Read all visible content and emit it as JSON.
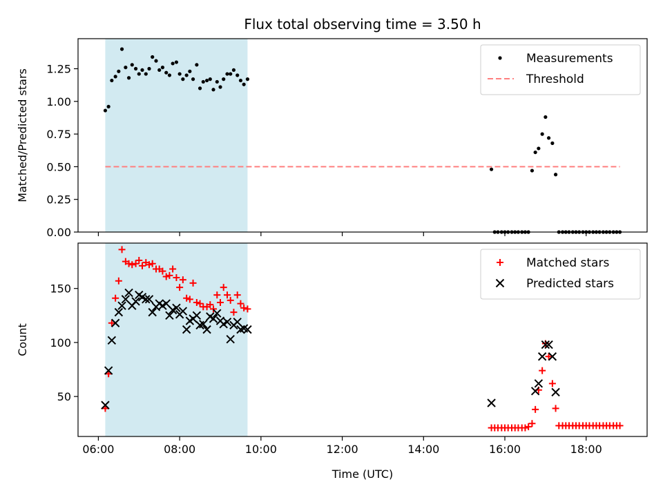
{
  "chart_data": {
    "title": "Flux total observing time = 3.50 h",
    "xlabel": "Time (UTC)",
    "x_unit": "hours UTC",
    "xlim": [
      5.5,
      19.5
    ],
    "x_ticks": [
      6,
      8,
      10,
      12,
      14,
      16,
      18
    ],
    "x_tick_labels": [
      "06:00",
      "08:00",
      "10:00",
      "12:00",
      "14:00",
      "16:00",
      "18:00"
    ],
    "shaded_interval": {
      "x": [
        6.17,
        9.67
      ],
      "color": "#add8e6"
    },
    "panels": [
      {
        "type": "scatter",
        "ylabel": "Matched/Predicted stars",
        "ylim": [
          0,
          1.48
        ],
        "y_ticks": [
          0,
          0.25,
          0.5,
          0.75,
          1.0,
          1.25
        ],
        "y_tick_labels": [
          "0.00",
          "0.25",
          "0.50",
          "0.75",
          "1.00",
          "1.25"
        ],
        "legend_position": "top-right",
        "series": [
          {
            "name": "Measurements",
            "marker": "dot",
            "color": "#000000",
            "x": [
              6.17,
              6.25,
              6.33,
              6.42,
              6.5,
              6.58,
              6.67,
              6.75,
              6.83,
              6.92,
              7.0,
              7.08,
              7.17,
              7.25,
              7.33,
              7.42,
              7.5,
              7.58,
              7.67,
              7.75,
              7.83,
              7.92,
              8.0,
              8.08,
              8.17,
              8.25,
              8.33,
              8.42,
              8.5,
              8.58,
              8.67,
              8.75,
              8.83,
              8.92,
              9.0,
              9.08,
              9.17,
              9.25,
              9.33,
              9.42,
              9.5,
              9.58,
              9.67,
              15.67,
              15.75,
              15.83,
              15.92,
              16.0,
              16.08,
              16.17,
              16.25,
              16.33,
              16.42,
              16.5,
              16.58,
              16.67,
              16.75,
              16.83,
              16.92,
              17.0,
              17.08,
              17.17,
              17.25,
              17.33,
              17.42,
              17.5,
              17.58,
              17.67,
              17.75,
              17.83,
              17.92,
              18.0,
              18.08,
              18.17,
              18.25,
              18.33,
              18.42,
              18.5,
              18.58,
              18.67,
              18.75,
              18.83
            ],
            "y": [
              0.93,
              0.96,
              1.16,
              1.19,
              1.23,
              1.4,
              1.26,
              1.18,
              1.28,
              1.25,
              1.21,
              1.24,
              1.21,
              1.25,
              1.34,
              1.31,
              1.24,
              1.26,
              1.22,
              1.2,
              1.29,
              1.3,
              1.21,
              1.17,
              1.2,
              1.23,
              1.17,
              1.28,
              1.1,
              1.15,
              1.16,
              1.17,
              1.09,
              1.15,
              1.11,
              1.17,
              1.21,
              1.21,
              1.24,
              1.2,
              1.16,
              1.13,
              1.17,
              0.48,
              0.0,
              0.0,
              0.0,
              0.0,
              0.0,
              0.0,
              0.0,
              0.0,
              0.0,
              0.0,
              0.0,
              0.47,
              0.61,
              0.64,
              0.75,
              0.88,
              0.72,
              0.68,
              0.44,
              0.0,
              0.0,
              0.0,
              0.0,
              0.0,
              0.0,
              0.0,
              0.0,
              0.0,
              0.0,
              0.0,
              0.0,
              0.0,
              0.0,
              0.0,
              0.0,
              0.0,
              0.0,
              0.0
            ]
          },
          {
            "name": "Threshold",
            "marker": "dashed-line",
            "color": "#ff7f7f",
            "x": [
              6.17,
              18.83
            ],
            "y": [
              0.5,
              0.5
            ]
          }
        ]
      },
      {
        "type": "scatter",
        "ylabel": "Count",
        "ylim": [
          13,
          192
        ],
        "y_ticks": [
          50,
          100,
          150
        ],
        "y_tick_labels": [
          "50",
          "100",
          "150"
        ],
        "legend_position": "top-right",
        "series": [
          {
            "name": "Matched stars",
            "marker": "plus",
            "color": "#ff0000",
            "x": [
              6.17,
              6.25,
              6.33,
              6.42,
              6.5,
              6.58,
              6.67,
              6.75,
              6.83,
              6.92,
              7.0,
              7.08,
              7.17,
              7.25,
              7.33,
              7.42,
              7.5,
              7.58,
              7.67,
              7.75,
              7.83,
              7.92,
              8.0,
              8.08,
              8.17,
              8.25,
              8.33,
              8.42,
              8.5,
              8.58,
              8.67,
              8.75,
              8.83,
              8.92,
              9.0,
              9.08,
              9.17,
              9.25,
              9.33,
              9.42,
              9.5,
              9.58,
              9.67,
              15.67,
              15.75,
              15.83,
              15.92,
              16.0,
              16.08,
              16.17,
              16.25,
              16.33,
              16.42,
              16.5,
              16.58,
              16.67,
              16.75,
              16.83,
              16.92,
              17.0,
              17.08,
              17.17,
              17.25,
              17.33,
              17.42,
              17.5,
              17.58,
              17.67,
              17.75,
              17.83,
              17.92,
              18.0,
              18.08,
              18.17,
              18.25,
              18.33,
              18.42,
              18.5,
              18.58,
              18.67,
              18.75,
              18.83
            ],
            "y": [
              39,
              71,
              118,
              141,
              157,
              186,
              175,
              173,
              172,
              173,
              176,
              171,
              174,
              172,
              173,
              168,
              168,
              166,
              161,
              162,
              168,
              160,
              151,
              158,
              141,
              140,
              155,
              137,
              136,
              133,
              133,
              135,
              131,
              144,
              137,
              151,
              144,
              139,
              128,
              144,
              136,
              132,
              131,
              21,
              21,
              21,
              21,
              21,
              21,
              21,
              21,
              21,
              21,
              21,
              22,
              25,
              38,
              56,
              74,
              99,
              87,
              62,
              39,
              23,
              23,
              23,
              23,
              23,
              23,
              23,
              23,
              23,
              23,
              23,
              23,
              23,
              23,
              23,
              23,
              23,
              23,
              23
            ]
          },
          {
            "name": "Predicted stars",
            "marker": "x",
            "color": "#000000",
            "x": [
              6.17,
              6.25,
              6.33,
              6.42,
              6.5,
              6.58,
              6.67,
              6.75,
              6.83,
              6.92,
              7.0,
              7.08,
              7.17,
              7.25,
              7.33,
              7.42,
              7.5,
              7.58,
              7.67,
              7.75,
              7.83,
              7.92,
              8.0,
              8.08,
              8.17,
              8.25,
              8.33,
              8.42,
              8.5,
              8.58,
              8.67,
              8.75,
              8.83,
              8.92,
              9.0,
              9.08,
              9.17,
              9.25,
              9.33,
              9.42,
              9.5,
              9.58,
              9.67,
              15.67,
              16.75,
              16.83,
              16.92,
              17.0,
              17.08,
              17.17,
              17.25
            ],
            "y": [
              42,
              74,
              102,
              118,
              128,
              134,
              140,
              146,
              134,
              138,
              144,
              142,
              140,
              140,
              128,
              133,
              136,
              134,
              136,
              125,
              130,
              132,
              126,
              129,
              112,
              120,
              122,
              125,
              116,
              117,
              112,
              124,
              122,
              127,
              120,
              117,
              119,
              103,
              116,
              119,
              112,
              113,
              112,
              44,
              55,
              62,
              87,
              98,
              98,
              87,
              54
            ]
          }
        ]
      }
    ]
  }
}
